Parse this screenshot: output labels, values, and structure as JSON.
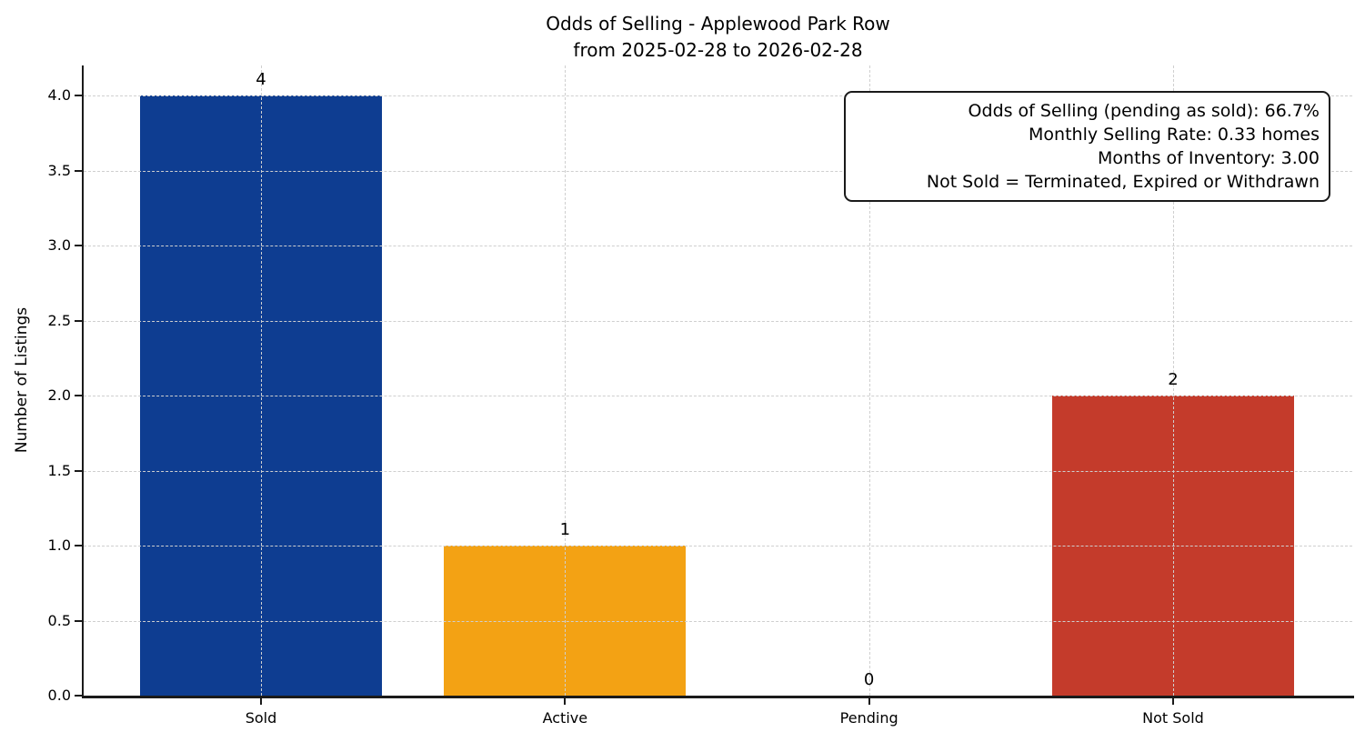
{
  "figure": {
    "background": "#ffffff"
  },
  "chart_data": {
    "type": "bar",
    "title_lines": [
      "Odds of Selling - Applewood Park Row",
      "from 2025-02-28 to 2026-02-28"
    ],
    "ylabel": "Number of Listings",
    "xlabel": "",
    "categories": [
      "Sold",
      "Active",
      "Pending",
      "Not Sold"
    ],
    "values": [
      4,
      1,
      0,
      2
    ],
    "bar_value_labels": [
      "4",
      "1",
      "0",
      "2"
    ],
    "bar_colors": [
      "#0e3d91",
      "#f3a214",
      null,
      "#c43b2b"
    ],
    "ylim": [
      0,
      4.2
    ],
    "ytick_labels": [
      "0.0",
      "0.5",
      "1.0",
      "1.5",
      "2.0",
      "2.5",
      "3.0",
      "3.5",
      "4.0"
    ],
    "grid": {
      "style": "dashed",
      "color": "#cfcfcf",
      "horizontal": true,
      "vertical": true
    },
    "legend": null,
    "annotation": {
      "align": "right",
      "lines": [
        "Odds of Selling (pending as sold): 66.7%",
        "Monthly Selling Rate: 0.33 homes",
        "Months of Inventory: 3.00",
        "Not Sold = Terminated, Expired or Withdrawn"
      ]
    }
  }
}
